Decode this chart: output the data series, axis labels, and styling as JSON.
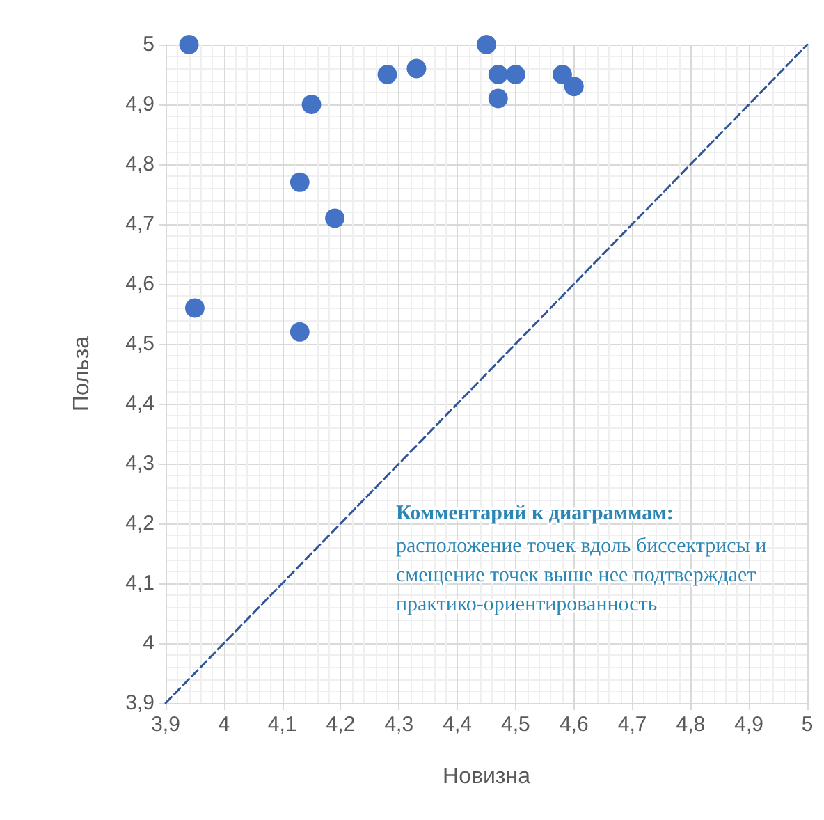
{
  "chart_data": {
    "type": "scatter",
    "xlabel": "Новизна",
    "ylabel": "Польза",
    "grid": true,
    "marker": "circle",
    "xlim": [
      3.9,
      5
    ],
    "ylim": [
      3.9,
      5
    ],
    "xticks": [
      {
        "value": 3.9,
        "label": "3,9"
      },
      {
        "value": 4,
        "label": "4"
      },
      {
        "value": 4.1,
        "label": "4,1"
      },
      {
        "value": 4.2,
        "label": "4,2"
      },
      {
        "value": 4.3,
        "label": "4,3"
      },
      {
        "value": 4.4,
        "label": "4,4"
      },
      {
        "value": 4.5,
        "label": "4,5"
      },
      {
        "value": 4.6,
        "label": "4,6"
      },
      {
        "value": 4.7,
        "label": "4,7"
      },
      {
        "value": 4.8,
        "label": "4,8"
      },
      {
        "value": 4.9,
        "label": "4,9"
      },
      {
        "value": 5,
        "label": "5"
      }
    ],
    "yticks": [
      {
        "value": 3.9,
        "label": "3,9"
      },
      {
        "value": 4,
        "label": "4"
      },
      {
        "value": 4.1,
        "label": "4,1"
      },
      {
        "value": 4.2,
        "label": "4,2"
      },
      {
        "value": 4.3,
        "label": "4,3"
      },
      {
        "value": 4.4,
        "label": "4,4"
      },
      {
        "value": 4.5,
        "label": "4,5"
      },
      {
        "value": 4.6,
        "label": "4,6"
      },
      {
        "value": 4.7,
        "label": "4,7"
      },
      {
        "value": 4.8,
        "label": "4,8"
      },
      {
        "value": 4.9,
        "label": "4,9"
      },
      {
        "value": 5,
        "label": "5"
      }
    ],
    "series": [
      {
        "type": "scatter",
        "color": "#4472c4",
        "x": [
          3.94,
          3.95,
          4.15,
          4.13,
          4.19,
          4.13,
          4.28,
          4.33,
          4.45,
          4.47,
          4.5,
          4.47,
          4.58,
          4.6
        ],
        "values": [
          5.0,
          4.56,
          4.9,
          4.77,
          4.71,
          4.52,
          4.95,
          4.96,
          5.0,
          4.95,
          4.95,
          4.91,
          4.95,
          4.93
        ]
      },
      {
        "type": "line",
        "color": "#2f5597",
        "line_style": "dashed",
        "marker": "none",
        "x": [
          3.9,
          5
        ],
        "values": [
          3.9,
          5
        ]
      }
    ],
    "annotations": [
      "Комментарий к диаграммам:",
      "расположение точек вдоль биссектрисы и смещение точек выше нее подтверждает практико-ориентированность"
    ]
  }
}
